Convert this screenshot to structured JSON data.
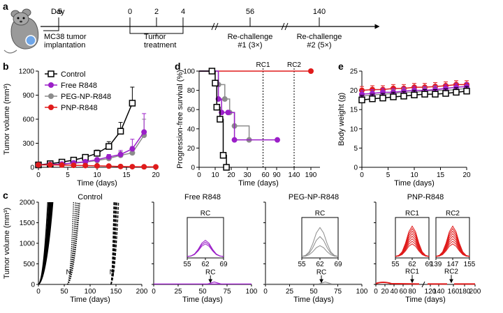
{
  "figure": {
    "panel_labels": [
      "a",
      "b",
      "c",
      "d",
      "e"
    ],
    "timeline": {
      "day_label": "Day",
      "days": [
        "-5",
        "0",
        "2",
        "4",
        "56",
        "140"
      ],
      "events": [
        "MC38 tumor\nimplantation",
        "Tumor\ntreatment",
        "Re-challenge\n#1 (3×)",
        "Re-challenge\n#2 (5×)"
      ]
    }
  },
  "colors": {
    "control": "#000000",
    "free": "#9b1fc8",
    "peg": "#8c8c8c",
    "pnp": "#e01b1b"
  },
  "chart_data": [
    {
      "panel": "b",
      "type": "line",
      "xlabel": "Time (days)",
      "ylabel": "Tumor volume (mm³)",
      "xlim": [
        0,
        20
      ],
      "ylim": [
        0,
        1200
      ],
      "xticks": [
        "0",
        "5",
        "10",
        "15",
        "20"
      ],
      "yticks": [
        "0",
        "300",
        "600",
        "900",
        "1200"
      ],
      "legend_position": "top-left",
      "series": [
        {
          "name": "Control",
          "color": "#000000",
          "marker": "square-open",
          "x": [
            0,
            2,
            4,
            6,
            8,
            10,
            12,
            14,
            16
          ],
          "y": [
            30,
            45,
            65,
            90,
            125,
            175,
            260,
            450,
            800
          ],
          "err": [
            5,
            10,
            15,
            20,
            25,
            40,
            60,
            110,
            200
          ]
        },
        {
          "name": "Free R848",
          "color": "#9b1fc8",
          "marker": "circle",
          "x": [
            0,
            2,
            4,
            6,
            8,
            10,
            12,
            14,
            16,
            18
          ],
          "y": [
            30,
            35,
            40,
            55,
            70,
            95,
            130,
            160,
            230,
            440
          ],
          "err": [
            5,
            8,
            10,
            12,
            15,
            20,
            30,
            50,
            120,
            230
          ]
        },
        {
          "name": "PEG-NP-R848",
          "color": "#8c8c8c",
          "marker": "circle",
          "x": [
            0,
            2,
            4,
            6,
            8,
            10,
            12,
            14,
            16,
            18
          ],
          "y": [
            30,
            35,
            40,
            50,
            65,
            85,
            110,
            150,
            180,
            400
          ],
          "err": [
            5,
            8,
            10,
            12,
            15,
            20,
            30,
            45,
            80,
            200
          ]
        },
        {
          "name": "PNP-R848",
          "color": "#e01b1b",
          "marker": "circle",
          "x": [
            0,
            2,
            4,
            6,
            8,
            10,
            12,
            14,
            16,
            18,
            20
          ],
          "y": [
            30,
            30,
            28,
            25,
            22,
            18,
            15,
            10,
            8,
            6,
            5
          ],
          "err": [
            5,
            5,
            5,
            5,
            5,
            4,
            4,
            3,
            2,
            2,
            2
          ]
        }
      ]
    },
    {
      "panel": "d",
      "type": "line",
      "xlabel": "Time (days)",
      "ylabel": "Progression-free survival (%)",
      "ylim": [
        0,
        100
      ],
      "xticks": [
        "0",
        "10",
        "20",
        "30",
        "60",
        "90",
        "140",
        "190"
      ],
      "yticks": [
        "0",
        "20",
        "40",
        "60",
        "80",
        "100"
      ],
      "annotations": [
        "RC1",
        "RC2"
      ],
      "series": [
        {
          "name": "Control",
          "color": "#000000",
          "marker": "square-open",
          "x": [
            0,
            8,
            10,
            11,
            13,
            15,
            17,
            18
          ],
          "y": [
            100,
            100,
            87.5,
            62.5,
            50,
            12.5,
            0,
            0
          ]
        },
        {
          "name": "Free R848",
          "color": "#9b1fc8",
          "marker": "circle",
          "x": [
            0,
            10,
            12,
            14,
            18,
            22,
            92
          ],
          "y": [
            100,
            100,
            71,
            57,
            57,
            28.5,
            28.5
          ]
        },
        {
          "name": "PEG-NP-R848",
          "color": "#8c8c8c",
          "marker": "circle",
          "x": [
            0,
            8,
            12,
            16,
            19,
            22,
            33
          ],
          "y": [
            100,
            100,
            86,
            71,
            57,
            43,
            28.5
          ]
        },
        {
          "name": "PNP-R848",
          "color": "#e01b1b",
          "marker": "circle",
          "x": [
            0,
            190
          ],
          "y": [
            100,
            100
          ]
        }
      ]
    },
    {
      "panel": "e",
      "type": "line",
      "xlabel": "Time (days)",
      "ylabel": "Body weight (g)",
      "xlim": [
        0,
        20
      ],
      "ylim": [
        0,
        25
      ],
      "xticks": [
        "0",
        "5",
        "10",
        "15",
        "20"
      ],
      "yticks": [
        "0",
        "5",
        "10",
        "15",
        "20",
        "25"
      ],
      "series": [
        {
          "name": "Control",
          "color": "#000000",
          "marker": "square-open",
          "x": [
            0,
            2,
            4,
            6,
            8,
            10,
            12,
            14,
            16,
            18,
            20
          ],
          "y": [
            17.5,
            17.8,
            18.0,
            18.3,
            18.5,
            18.8,
            19.0,
            19.0,
            19.2,
            19.5,
            19.8
          ],
          "err": [
            1.2,
            1.2,
            1.2,
            1.2,
            1.2,
            1.2,
            1.2,
            1.2,
            1.2,
            1.2,
            1.2
          ]
        },
        {
          "name": "Free R848",
          "color": "#9b1fc8",
          "marker": "circle",
          "x": [
            0,
            2,
            4,
            6,
            8,
            10,
            12,
            14,
            16,
            18,
            20
          ],
          "y": [
            19.0,
            19.2,
            19.5,
            19.5,
            19.8,
            20.0,
            20.0,
            20.2,
            20.5,
            20.8,
            21.0
          ],
          "err": [
            1.0,
            1.0,
            1.0,
            1.0,
            1.0,
            1.0,
            1.0,
            1.0,
            1.0,
            1.0,
            1.0
          ]
        },
        {
          "name": "PEG-NP-R848",
          "color": "#8c8c8c",
          "marker": "circle",
          "x": [
            0,
            2,
            4,
            6,
            8,
            10,
            12,
            14,
            16,
            18,
            20
          ],
          "y": [
            18.5,
            18.8,
            19.0,
            19.2,
            19.5,
            19.5,
            19.8,
            20.0,
            20.0,
            20.2,
            20.5
          ],
          "err": [
            1.0,
            1.0,
            1.0,
            1.0,
            1.0,
            1.0,
            1.0,
            1.0,
            1.0,
            1.0,
            1.0
          ]
        },
        {
          "name": "PNP-R848",
          "color": "#e01b1b",
          "marker": "circle",
          "x": [
            0,
            2,
            4,
            6,
            8,
            10,
            12,
            14,
            16,
            18,
            20
          ],
          "y": [
            20.0,
            20.2,
            20.2,
            20.5,
            20.5,
            20.8,
            20.8,
            21.0,
            21.2,
            21.5,
            21.5
          ],
          "err": [
            1.0,
            1.0,
            1.0,
            1.0,
            1.0,
            1.0,
            1.0,
            1.0,
            1.0,
            1.0,
            1.0
          ]
        }
      ]
    },
    {
      "panel": "c",
      "type": "line",
      "ylabel": "Tumor volume (mm³)",
      "xlabel": "Time (days)",
      "ylim": [
        0,
        2000
      ],
      "yticks": [
        "0",
        "500",
        "1000",
        "1500",
        "2000"
      ],
      "subplots": [
        {
          "title": "Control",
          "xticks": [
            "0",
            "50",
            "100",
            "150",
            "200"
          ],
          "xlim": [
            0,
            200
          ],
          "groups": [
            {
              "style": "solid",
              "x0": 0,
              "x_end": [
                18,
                20,
                21,
                22,
                23,
                24,
                25,
                26,
                27,
                28
              ]
            },
            {
              "style": "dotted",
              "x0": 56,
              "x_end": [
                68,
                72,
                75,
                78,
                80
              ]
            },
            {
              "style": "dashed",
              "x0": 140,
              "x_end": [
                146,
                148,
                150,
                152,
                155
              ]
            }
          ],
          "markers": [
            "N",
            "N"
          ]
        },
        {
          "title": "Free R848",
          "xticks": [
            "0",
            "25",
            "50",
            "75",
            "100"
          ],
          "xlim": [
            0,
            100
          ],
          "groups": [
            {
              "x_end": [
                16,
                18,
                19,
                20,
                21,
                22,
                23,
                24
              ]
            }
          ],
          "marker": "RC",
          "inset": {
            "title": "RC",
            "xticks": [
              "55",
              "62",
              "69"
            ],
            "xlim": [
              55,
              69
            ]
          }
        },
        {
          "title": "PEG-NP-R848",
          "xticks": [
            "0",
            "25",
            "50",
            "75",
            "100"
          ],
          "xlim": [
            0,
            100
          ],
          "groups": [
            {
              "x_end": [
                18,
                22,
                25,
                28,
                32,
                36,
                40,
                45,
                50
              ]
            }
          ],
          "marker": "RC",
          "inset": {
            "title": "RC",
            "xticks": [
              "55",
              "62",
              "69"
            ],
            "xlim": [
              55,
              69
            ]
          }
        },
        {
          "title": "PNP-R848",
          "xticks": [
            "0",
            "20",
            "40",
            "60",
            "80",
            "120",
            "140",
            "160",
            "180",
            "200"
          ],
          "xlim": [
            0,
            200
          ],
          "markers": [
            "RC1",
            "RC2"
          ],
          "insets": [
            {
              "title": "RC1",
              "xticks": [
                "55",
                "62",
                "69"
              ],
              "xlim": [
                55,
                69
              ]
            },
            {
              "title": "RC2",
              "xticks": [
                "139",
                "147",
                "155"
              ],
              "xlim": [
                139,
                155
              ]
            }
          ]
        }
      ]
    }
  ]
}
